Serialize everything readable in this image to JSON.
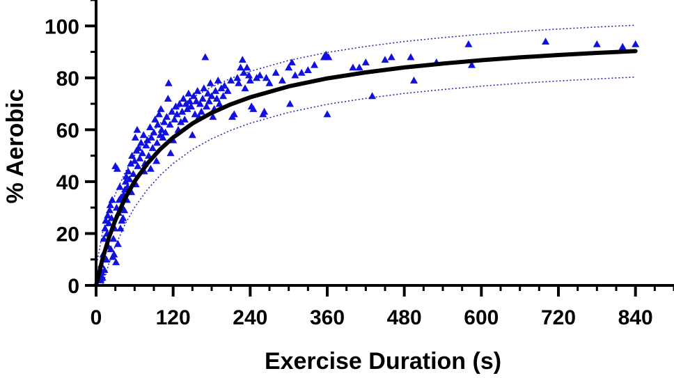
{
  "chart_data": {
    "type": "scatter",
    "title": "",
    "xlabel": "Exercise Duration (s)",
    "ylabel": "% Aerobic",
    "xlim": [
      0,
      900
    ],
    "ylim": [
      0,
      110
    ],
    "x_ticks": [
      0,
      120,
      240,
      360,
      480,
      600,
      720,
      840
    ],
    "x_tick_labels": [
      "0",
      "120",
      "240",
      "360",
      "480",
      "600",
      "720",
      "840"
    ],
    "y_ticks": [
      0,
      20,
      40,
      60,
      80,
      100
    ],
    "y_tick_labels": [
      "0",
      "20",
      "40",
      "60",
      "80",
      "100"
    ],
    "x_minor_step": 30,
    "y_minor_step": 10,
    "grid": false,
    "legend": "none",
    "colors": {
      "points": "#1010e0",
      "fit": "#000000",
      "bands": "#2a2ab0",
      "axis": "#000000"
    },
    "series": [
      {
        "name": "observations",
        "marker": "triangle",
        "points": [
          [
            5,
            4
          ],
          [
            7,
            2
          ],
          [
            8,
            8
          ],
          [
            9,
            5
          ],
          [
            10,
            3
          ],
          [
            11,
            12
          ],
          [
            12,
            18
          ],
          [
            13,
            6
          ],
          [
            14,
            22
          ],
          [
            15,
            25
          ],
          [
            16,
            10
          ],
          [
            17,
            20
          ],
          [
            18,
            27
          ],
          [
            19,
            15
          ],
          [
            20,
            24
          ],
          [
            21,
            29
          ],
          [
            22,
            31
          ],
          [
            23,
            14
          ],
          [
            24,
            26
          ],
          [
            25,
            33
          ],
          [
            26,
            11
          ],
          [
            27,
            18
          ],
          [
            28,
            12
          ],
          [
            29,
            22
          ],
          [
            30,
            46
          ],
          [
            31,
            9
          ],
          [
            32,
            30
          ],
          [
            33,
            45
          ],
          [
            34,
            16
          ],
          [
            35,
            28
          ],
          [
            36,
            33
          ],
          [
            37,
            38
          ],
          [
            38,
            22
          ],
          [
            39,
            34
          ],
          [
            40,
            25
          ],
          [
            41,
            30
          ],
          [
            42,
            26
          ],
          [
            43,
            35
          ],
          [
            44,
            29
          ],
          [
            45,
            37
          ],
          [
            46,
            40
          ],
          [
            47,
            42
          ],
          [
            48,
            33
          ],
          [
            49,
            38
          ],
          [
            50,
            44
          ],
          [
            52,
            41
          ],
          [
            54,
            47
          ],
          [
            55,
            36
          ],
          [
            56,
            50
          ],
          [
            58,
            43
          ],
          [
            60,
            48
          ],
          [
            61,
            57
          ],
          [
            62,
            39
          ],
          [
            63,
            52
          ],
          [
            64,
            60
          ],
          [
            65,
            46
          ],
          [
            66,
            53
          ],
          [
            68,
            49
          ],
          [
            70,
            55
          ],
          [
            72,
            51
          ],
          [
            74,
            58
          ],
          [
            75,
            44
          ],
          [
            76,
            47
          ],
          [
            78,
            54
          ],
          [
            80,
            56
          ],
          [
            82,
            50
          ],
          [
            84,
            61
          ],
          [
            85,
            45
          ],
          [
            86,
            57
          ],
          [
            88,
            53
          ],
          [
            90,
            59
          ],
          [
            92,
            64
          ],
          [
            94,
            48
          ],
          [
            95,
            55
          ],
          [
            96,
            62
          ],
          [
            98,
            66
          ],
          [
            100,
            58
          ],
          [
            101,
            68
          ],
          [
            102,
            60
          ],
          [
            104,
            57
          ],
          [
            106,
            63
          ],
          [
            108,
            59
          ],
          [
            110,
            65
          ],
          [
            112,
            72
          ],
          [
            113,
            78
          ],
          [
            115,
            62
          ],
          [
            116,
            51
          ],
          [
            118,
            67
          ],
          [
            120,
            56
          ],
          [
            122,
            64
          ],
          [
            124,
            69
          ],
          [
            126,
            66
          ],
          [
            128,
            60
          ],
          [
            130,
            70
          ],
          [
            132,
            63
          ],
          [
            134,
            67
          ],
          [
            136,
            72
          ],
          [
            138,
            64
          ],
          [
            140,
            70
          ],
          [
            142,
            68
          ],
          [
            144,
            74
          ],
          [
            146,
            71
          ],
          [
            148,
            69
          ],
          [
            150,
            58
          ],
          [
            152,
            73
          ],
          [
            154,
            66
          ],
          [
            156,
            71
          ],
          [
            158,
            75
          ],
          [
            160,
            65
          ],
          [
            162,
            70
          ],
          [
            164,
            67
          ],
          [
            166,
            72
          ],
          [
            168,
            76
          ],
          [
            170,
            88
          ],
          [
            172,
            69
          ],
          [
            174,
            74
          ],
          [
            176,
            71
          ],
          [
            178,
            78
          ],
          [
            180,
            73
          ],
          [
            182,
            65
          ],
          [
            184,
            68
          ],
          [
            186,
            75
          ],
          [
            188,
            72
          ],
          [
            190,
            79
          ],
          [
            192,
            70
          ],
          [
            195,
            76
          ],
          [
            198,
            73
          ],
          [
            200,
            77
          ],
          [
            205,
            75
          ],
          [
            210,
            79
          ],
          [
            212,
            65
          ],
          [
            215,
            66
          ],
          [
            220,
            80
          ],
          [
            222,
            78
          ],
          [
            225,
            84
          ],
          [
            228,
            87
          ],
          [
            230,
            82
          ],
          [
            232,
            76
          ],
          [
            235,
            84
          ],
          [
            238,
            81
          ],
          [
            240,
            79
          ],
          [
            242,
            69
          ],
          [
            245,
            68
          ],
          [
            250,
            80
          ],
          [
            255,
            81
          ],
          [
            260,
            66
          ],
          [
            262,
            67
          ],
          [
            265,
            80
          ],
          [
            270,
            78
          ],
          [
            280,
            82
          ],
          [
            290,
            79
          ],
          [
            300,
            84
          ],
          [
            302,
            70
          ],
          [
            305,
            86
          ],
          [
            310,
            81
          ],
          [
            320,
            82
          ],
          [
            330,
            83
          ],
          [
            340,
            85
          ],
          [
            355,
            88
          ],
          [
            358,
            89
          ],
          [
            360,
            66
          ],
          [
            362,
            88
          ],
          [
            400,
            84
          ],
          [
            410,
            84
          ],
          [
            420,
            86
          ],
          [
            430,
            73
          ],
          [
            450,
            87
          ],
          [
            460,
            88
          ],
          [
            490,
            88
          ],
          [
            495,
            79
          ],
          [
            530,
            86
          ],
          [
            580,
            93
          ],
          [
            585,
            85
          ],
          [
            700,
            94
          ],
          [
            780,
            93
          ],
          [
            820,
            92
          ],
          [
            840,
            93
          ]
        ]
      }
    ],
    "fit": {
      "name": "fit",
      "model": "hyperbolic",
      "x": [
        0,
        10,
        20,
        30,
        45,
        60,
        80,
        100,
        120,
        150,
        180,
        210,
        240,
        300,
        360,
        420,
        480,
        540,
        600,
        660,
        720,
        780,
        840
      ],
      "y": [
        0,
        10.2,
        18.4,
        25.2,
        33.5,
        40.1,
        47.0,
        52.5,
        57.0,
        62.4,
        66.5,
        69.8,
        72.5,
        76.7,
        79.8,
        82.1,
        84.0,
        85.5,
        86.8,
        87.9,
        88.8,
        89.6,
        90.3
      ],
      "lower_band": [
        0,
        0,
        8.4,
        15.2,
        23.5,
        30.1,
        37.0,
        42.5,
        47.0,
        52.4,
        56.5,
        59.8,
        62.5,
        66.7,
        69.8,
        72.1,
        74.0,
        75.5,
        76.8,
        77.9,
        78.8,
        79.6,
        80.3
      ],
      "upper_band": [
        7,
        20.2,
        28.4,
        35.2,
        43.5,
        50.1,
        57.0,
        62.5,
        67.0,
        72.4,
        76.5,
        79.8,
        82.5,
        86.7,
        89.8,
        92.1,
        94.0,
        95.5,
        96.8,
        97.9,
        98.8,
        99.6,
        100.3
      ]
    }
  }
}
